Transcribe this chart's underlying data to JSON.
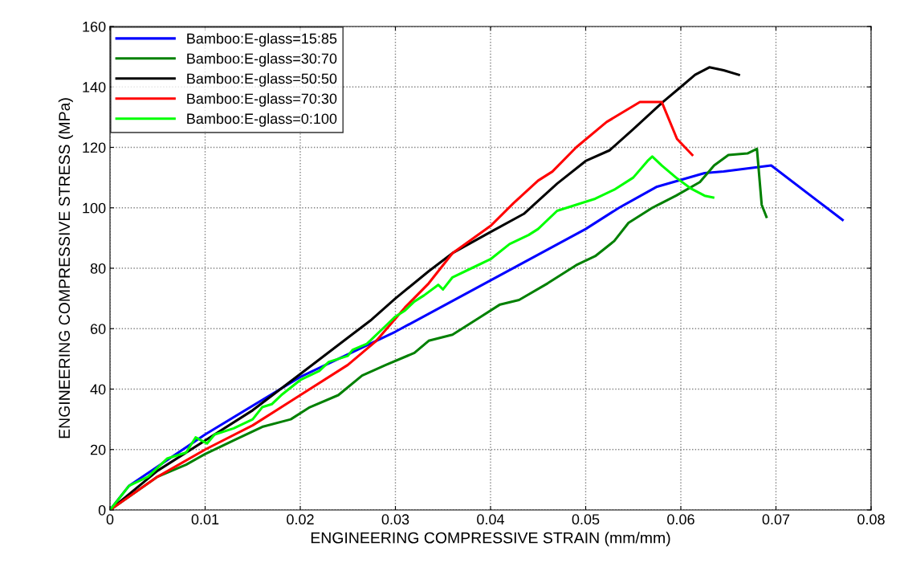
{
  "chart_data": {
    "type": "line",
    "xlabel": "ENGINEERING COMPRESSIVE STRAIN (mm/mm)",
    "ylabel": "ENGINEERING COMPRESSIVE STRESS (MPa)",
    "xlim": [
      0,
      0.08
    ],
    "xticks": [
      0,
      0.01,
      0.02,
      0.03,
      0.04,
      0.05,
      0.06,
      0.07,
      0.08
    ],
    "ylim": [
      0,
      160
    ],
    "yticks": [
      0,
      20,
      40,
      60,
      80,
      100,
      120,
      140,
      160
    ],
    "grid": true,
    "legend": "top left",
    "marker": "none",
    "line_style": "solid",
    "series": [
      {
        "name": "Bamboo:E-glass=15:85",
        "color": "#0000ff",
        "x": [
          0,
          0.002,
          0.01,
          0.02,
          0.03,
          0.04,
          0.05,
          0.0535,
          0.0575,
          0.0625,
          0.0645,
          0.0695,
          0.077
        ],
        "values": [
          0,
          8,
          25,
          44,
          59,
          76,
          93,
          100,
          107,
          111.5,
          112,
          114,
          96
        ]
      },
      {
        "name": "Bamboo:E-glass=30:70",
        "color": "#008000",
        "x": [
          0,
          0.005,
          0.008,
          0.01,
          0.013,
          0.016,
          0.019,
          0.021,
          0.024,
          0.0265,
          0.029,
          0.032,
          0.0335,
          0.036,
          0.039,
          0.041,
          0.043,
          0.046,
          0.049,
          0.051,
          0.053,
          0.0545,
          0.057,
          0.0595,
          0.062,
          0.0635,
          0.065,
          0.067,
          0.068,
          0.0685,
          0.069
        ],
        "values": [
          0,
          11,
          15,
          18.5,
          23,
          27.5,
          30,
          34,
          38,
          44.5,
          48,
          52,
          56,
          58,
          64,
          68,
          69.5,
          75,
          81,
          84,
          89,
          95,
          100,
          104,
          108.5,
          114,
          117.5,
          118,
          119.5,
          101,
          97
        ]
      },
      {
        "name": "Bamboo:E-glass=50:50",
        "color": "#000000",
        "x": [
          0,
          0.005,
          0.01,
          0.015,
          0.02,
          0.025,
          0.0275,
          0.03,
          0.0335,
          0.036,
          0.04,
          0.0435,
          0.047,
          0.05,
          0.0525,
          0.055,
          0.0581,
          0.06,
          0.0615,
          0.063,
          0.0645,
          0.0661
        ],
        "values": [
          0,
          13,
          23,
          33,
          45,
          57,
          63,
          70,
          79,
          85,
          92,
          98,
          108,
          115.5,
          119,
          126,
          135,
          140,
          144,
          146.5,
          145.5,
          144
        ]
      },
      {
        "name": "Bamboo:E-glass=70:30",
        "color": "#ff0000",
        "x": [
          0,
          0.005,
          0.01,
          0.015,
          0.02,
          0.025,
          0.028,
          0.031,
          0.0335,
          0.036,
          0.04,
          0.0424,
          0.045,
          0.0465,
          0.049,
          0.0522,
          0.0557,
          0.058,
          0.0596,
          0.0612
        ],
        "values": [
          0,
          11,
          20,
          28,
          38,
          48,
          56,
          67,
          75,
          85,
          94,
          101.5,
          109,
          112,
          120,
          128.4,
          135,
          135,
          122.8,
          117.5
        ]
      },
      {
        "name": "Bamboo:E-glass=0:100",
        "color": "#00ff00",
        "x": [
          0,
          0.002,
          0.004,
          0.006,
          0.008,
          0.009,
          0.0102,
          0.011,
          0.013,
          0.015,
          0.016,
          0.017,
          0.018,
          0.02,
          0.022,
          0.023,
          0.025,
          0.0255,
          0.027,
          0.029,
          0.03,
          0.031,
          0.032,
          0.033,
          0.0345,
          0.035,
          0.036,
          0.038,
          0.04,
          0.042,
          0.044,
          0.045,
          0.047,
          0.049,
          0.051,
          0.053,
          0.055,
          0.0565,
          0.057,
          0.058,
          0.0595,
          0.061,
          0.0625,
          0.0634
        ],
        "values": [
          0,
          8,
          11,
          17,
          19,
          24,
          22,
          25,
          27,
          30,
          34,
          35,
          38,
          43,
          46,
          49,
          51,
          53,
          55,
          61,
          64,
          66,
          69,
          71,
          74.5,
          73,
          77,
          80,
          83,
          88,
          91,
          93,
          99,
          101,
          103,
          106,
          110,
          115.5,
          117,
          114,
          110,
          106.5,
          104,
          103.4
        ]
      }
    ]
  }
}
